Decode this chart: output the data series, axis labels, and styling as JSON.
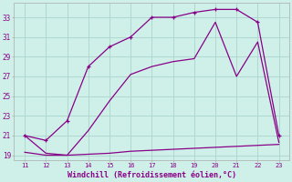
{
  "title": "Windchill (Refroidissement éolien,°C)",
  "bg_color": "#cff0e8",
  "grid_color": "#b0d8d0",
  "line_color": "#880088",
  "x_hours": [
    11,
    12,
    13,
    14,
    15,
    16,
    17,
    18,
    19,
    20,
    21,
    22,
    23
  ],
  "line_flat": [
    19.3,
    19.0,
    19.0,
    19.1,
    19.2,
    19.4,
    19.5,
    19.6,
    19.7,
    19.8,
    19.9,
    20.0,
    20.1
  ],
  "line_triangle": [
    21.0,
    19.2,
    19.0,
    21.5,
    24.5,
    27.2,
    28.0,
    28.5,
    28.8,
    32.5,
    27.0,
    30.5,
    20.3
  ],
  "line_smooth_x": [
    11,
    12,
    13,
    14,
    15,
    16,
    17,
    18,
    19,
    20,
    21,
    22,
    23
  ],
  "line_smooth": [
    21.0,
    20.5,
    22.5,
    28.0,
    30.0,
    31.0,
    33.0,
    33.0,
    33.5,
    33.8,
    33.8,
    32.5,
    21.0
  ],
  "ylim": [
    18.5,
    34.5
  ],
  "yticks": [
    19,
    21,
    23,
    25,
    27,
    29,
    31,
    33
  ],
  "xlim": [
    10.5,
    23.5
  ],
  "xticks": [
    11,
    12,
    13,
    14,
    15,
    16,
    17,
    18,
    19,
    20,
    21,
    22,
    23
  ]
}
